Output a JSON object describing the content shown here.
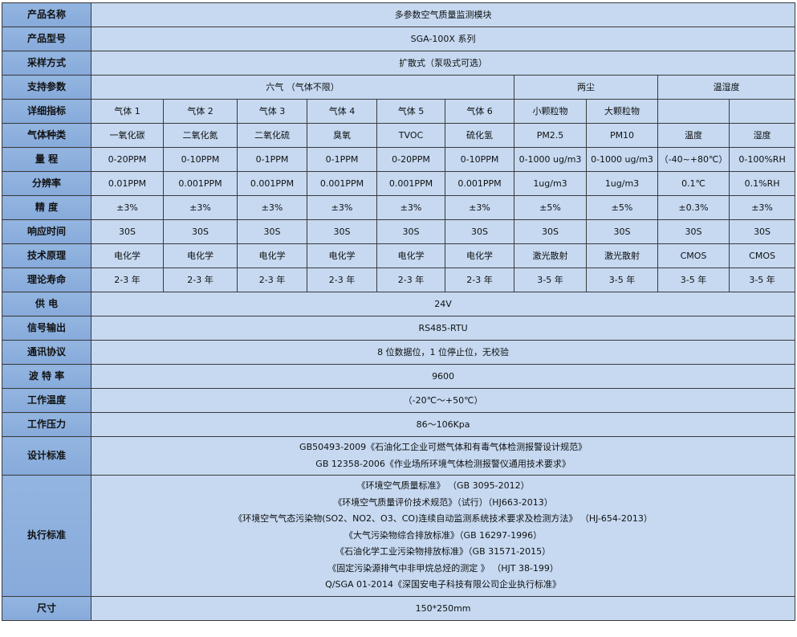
{
  "rows": {
    "name": {
      "label": "产品名称",
      "value": "多参数空气质量监测模块"
    },
    "model": {
      "label": "产品型号",
      "value": "SGA-100X 系列"
    },
    "sampling": {
      "label": "采样方式",
      "value": "扩散式（泵吸式可选）"
    },
    "params": {
      "label": "支持参数",
      "groups": [
        "六气 （气体不限）",
        "两尘",
        "温湿度"
      ]
    },
    "detail": {
      "label": "详细指标",
      "cells": [
        "气体 1",
        "气体 2",
        "气体 3",
        "气体 4",
        "气体 5",
        "气体 6",
        "小颗粒物",
        "大颗粒物",
        "",
        ""
      ]
    },
    "gas": {
      "label": "气体种类",
      "cells": [
        "一氧化碳",
        "二氧化氮",
        "二氧化硫",
        "臭氧",
        "TVOC",
        "硫化氢",
        "PM2.5",
        "PM10",
        "温度",
        "湿度"
      ]
    },
    "range": {
      "label": "量 程",
      "cells": [
        "0-20PPM",
        "0-10PPM",
        "0-1PPM",
        "0-1PPM",
        "0-20PPM",
        "0-10PPM",
        "0-1000 ug/m3",
        "0-1000 ug/m3",
        "（-40~+80℃）",
        "0-100%RH"
      ]
    },
    "resolution": {
      "label": "分辨率",
      "cells": [
        "0.01PPM",
        "0.001PPM",
        "0.001PPM",
        "0.001PPM",
        "0.001PPM",
        "0.001PPM",
        "1ug/m3",
        "1ug/m3",
        "0.1℃",
        "0.1%RH"
      ]
    },
    "accuracy": {
      "label": "精 度",
      "cells": [
        "±3%",
        "±3%",
        "±3%",
        "±3%",
        "±3%",
        "±3%",
        "±5%",
        "±5%",
        "±0.3%",
        "±3%"
      ]
    },
    "response": {
      "label": "响应时间",
      "cells": [
        "30S",
        "30S",
        "30S",
        "30S",
        "30S",
        "30S",
        "30S",
        "30S",
        "30S",
        "30S"
      ]
    },
    "principle": {
      "label": "技术原理",
      "cells": [
        "电化学",
        "电化学",
        "电化学",
        "电化学",
        "电化学",
        "电化学",
        "激光散射",
        "激光散射",
        "CMOS",
        "CMOS"
      ]
    },
    "life": {
      "label": "理论寿命",
      "cells": [
        "2-3 年",
        "2-3 年",
        "2-3 年",
        "2-3 年",
        "2-3 年",
        "2-3 年",
        "3-5 年",
        "3-5 年",
        "3-5 年",
        "3-5 年"
      ]
    },
    "power": {
      "label": "供 电",
      "value": "24V"
    },
    "signal": {
      "label": "信号输出",
      "value": "RS485-RTU"
    },
    "protocol": {
      "label": "通讯协议",
      "value": "8 位数据位，1 位停止位，无校验"
    },
    "baud": {
      "label": "波 特 率",
      "value": "9600"
    },
    "temp": {
      "label": "工作温度",
      "value": "（-20℃～+50℃）"
    },
    "pressure": {
      "label": "工作压力",
      "value": "86～106Kpa"
    },
    "design": {
      "label": "设计标准",
      "lines": [
        "GB50493-2009《石油化工企业可燃气体和有毒气体检测报警设计规范》",
        "GB 12358-2006《作业场所环境气体检测报警仪通用技术要求》"
      ]
    },
    "exec": {
      "label": "执行标准",
      "lines": [
        "《环境空气质量标准》  （GB 3095-2012）",
        "《环境空气质量评价技术规范》（试行）（HJ663-2013）",
        "《环境空气气态污染物(SO2、NO2、O3、CO)连续自动监测系统技术要求及检测方法》 （HJ-654-2013）",
        "《大气污染物综合排放标准》（GB 16297-1996）",
        "《石油化学工业污染物排放标准》（GB 31571-2015）",
        "《固定污染源排气中非甲烷总烃的测定 》 （HJT 38-199）",
        "Q/SGA 01-2014《深国安电子科技有限公司企业执行标准》"
      ]
    },
    "size": {
      "label": "尺寸",
      "value": "150*250mm"
    }
  }
}
